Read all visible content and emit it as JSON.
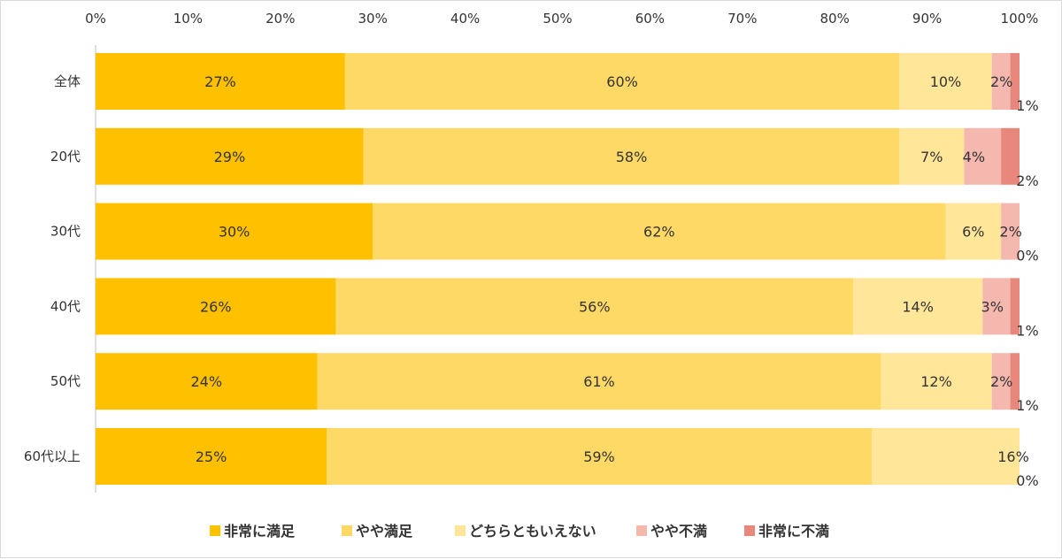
{
  "chart_data": {
    "type": "bar",
    "orientation": "horizontal",
    "stacked": true,
    "percent_stacked": true,
    "categories": [
      "全体",
      "20代",
      "30代",
      "40代",
      "50代",
      "60代以上"
    ],
    "series": [
      {
        "name": "非常に満足",
        "color": "#ffc000",
        "values": [
          27,
          29,
          30,
          26,
          24,
          25
        ],
        "labels": [
          "27%",
          "29%",
          "30%",
          "26%",
          "24%",
          "25%"
        ]
      },
      {
        "name": "やや満足",
        "color": "#ffd966",
        "values": [
          60,
          58,
          62,
          56,
          61,
          59
        ],
        "labels": [
          "60%",
          "58%",
          "62%",
          "56%",
          "61%",
          "59%"
        ]
      },
      {
        "name": "どちらともいえない",
        "color": "#ffe699",
        "values": [
          10,
          7,
          6,
          14,
          12,
          16
        ],
        "labels": [
          "10%",
          "7%",
          "6%",
          "14%",
          "12%",
          "16%"
        ]
      },
      {
        "name": "やや不満",
        "color": "#f4b8ae",
        "values": [
          2,
          4,
          2,
          3,
          2,
          0
        ],
        "labels": [
          "2%",
          "4%",
          "2%",
          "3%",
          "2%",
          ""
        ]
      },
      {
        "name": "非常に不満",
        "color": "#e8887c",
        "values": [
          1,
          2,
          0,
          1,
          1,
          0
        ],
        "labels": [
          "1%",
          "2%",
          "0%",
          "1%",
          "1%",
          "0%"
        ]
      }
    ],
    "x_ticks": [
      "0%",
      "10%",
      "20%",
      "30%",
      "40%",
      "50%",
      "60%",
      "70%",
      "80%",
      "90%",
      "100%"
    ],
    "xlim": [
      0,
      100
    ],
    "title": "",
    "xlabel": "",
    "ylabel": "",
    "grid": false,
    "legend_position": "bottom"
  }
}
